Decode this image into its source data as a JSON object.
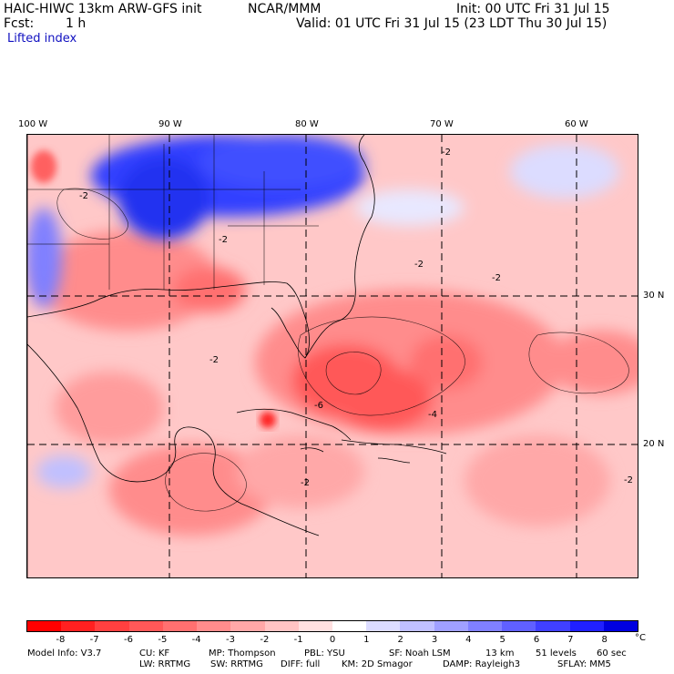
{
  "header": {
    "title": "HAIC-HIWC 13km ARW-GFS init",
    "org": "NCAR/MMM",
    "init": "Init: 00 UTC Fri 31 Jul 15",
    "fcst_label": "Fcst:",
    "fcst_value": "1 h",
    "valid": "Valid: 01 UTC Fri 31 Jul 15 (23 LDT Thu 30 Jul 15)",
    "field": "Lifted index"
  },
  "axes": {
    "lon_labels": [
      "100 W",
      "90 W",
      "80 W",
      "70 W",
      "60 W"
    ],
    "lat_labels": [
      "30 N",
      "20 N"
    ]
  },
  "contour_labels": [
    "-2",
    "-4",
    "-6"
  ],
  "colorbar": {
    "colors": [
      "#ff0000",
      "#ff2020",
      "#ff4040",
      "#ff5858",
      "#ff7070",
      "#ff8c8c",
      "#ffa8a8",
      "#ffc4c4",
      "#ffe0e0",
      "#ffffff",
      "#dcdcff",
      "#c0c0ff",
      "#a0a0ff",
      "#8080ff",
      "#6060ff",
      "#4040ff",
      "#2020ff",
      "#0000e0"
    ],
    "ticks": [
      "-8",
      "-7",
      "-6",
      "-5",
      "-4",
      "-3",
      "-2",
      "-1",
      "0",
      "1",
      "2",
      "3",
      "4",
      "5",
      "6",
      "7",
      "8"
    ],
    "unit": "°C"
  },
  "footer": {
    "line1": [
      "Model Info: V3.7",
      "CU: KF",
      "MP: Thompson",
      "PBL: YSU",
      "SF: Noah LSM",
      "13 km",
      "51 levels",
      "60 sec"
    ],
    "line2": [
      "LW: RRTMG",
      "SW: RRTMG",
      "DIFF: full",
      "KM: 2D Smagor",
      "DAMP: Rayleigh3",
      "SFLAY: MM5"
    ]
  },
  "colors": {
    "warm_max": "#ff3030",
    "cool_max": "#1020e0",
    "base": "#ffc8c8"
  }
}
